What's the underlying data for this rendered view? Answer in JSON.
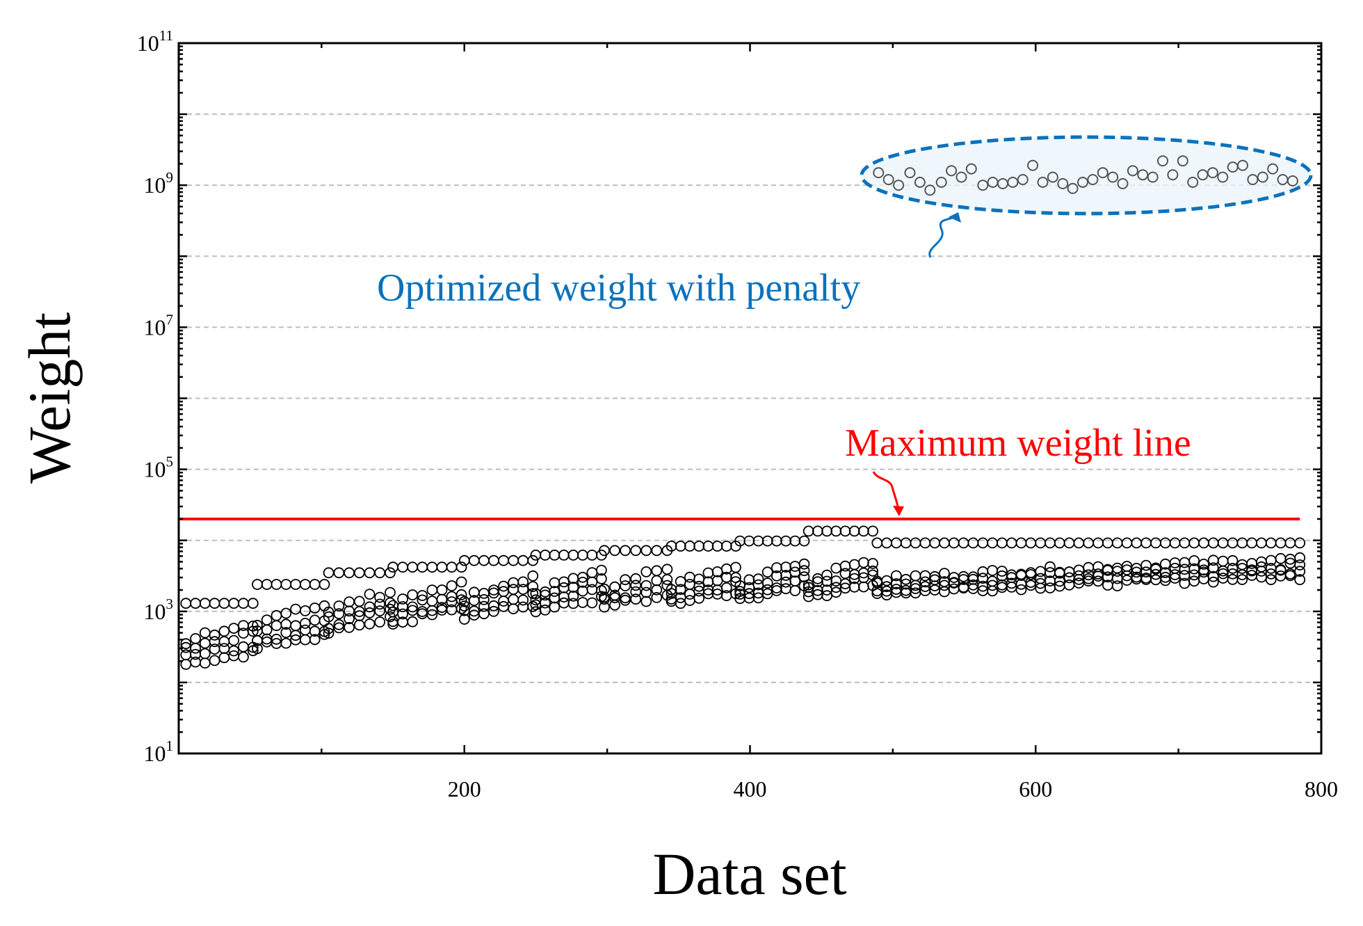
{
  "chart_data": {
    "type": "scatter",
    "title": "",
    "xlabel": "Data set",
    "ylabel": "Weight",
    "xlim": [
      0,
      800
    ],
    "ylim_log10": [
      1,
      11
    ],
    "yscale": "log",
    "grid": "dashed, at every decade 10^2 to 10^10",
    "x_ticks": [
      {
        "value": 200,
        "label": "200"
      },
      {
        "value": 400,
        "label": "400"
      },
      {
        "value": 600,
        "label": "600"
      },
      {
        "value": 800,
        "label": "800"
      }
    ],
    "y_ticks": [
      {
        "exp": 1,
        "base": "10",
        "sup": "1"
      },
      {
        "exp": 3,
        "base": "10",
        "sup": "3"
      },
      {
        "exp": 5,
        "base": "10",
        "sup": "5"
      },
      {
        "exp": 7,
        "base": "10",
        "sup": "7"
      },
      {
        "exp": 9,
        "base": "10",
        "sup": "9"
      },
      {
        "exp": 11,
        "base": "10",
        "sup": "11"
      }
    ],
    "max_weight_line": {
      "label": "Maximum weight line",
      "value": 20000,
      "x_range": [
        0,
        785
      ],
      "color": "#ff0000"
    },
    "series_groups": [
      {
        "x_start": 5,
        "x_end": 52,
        "mins": [
          180,
          240,
          300,
          380
        ],
        "maxs": [
          260,
          330,
          480,
          650,
          1300
        ]
      },
      {
        "x_start": 55,
        "x_end": 102,
        "mins": [
          320,
          400,
          520,
          700
        ],
        "maxs": [
          450,
          550,
          800,
          1200,
          2400
        ]
      },
      {
        "x_start": 105,
        "x_end": 148,
        "mins": [
          500,
          620,
          800,
          1000
        ],
        "maxs": [
          800,
          1000,
          1400,
          1900,
          3500
        ]
      },
      {
        "x_start": 150,
        "x_end": 198,
        "mins": [
          650,
          780,
          950,
          1200
        ],
        "maxs": [
          1100,
          1400,
          1900,
          2600,
          4200
        ]
      },
      {
        "x_start": 200,
        "x_end": 248,
        "mins": [
          850,
          1000,
          1200,
          1500
        ],
        "maxs": [
          1300,
          1700,
          2300,
          3100,
          5200
        ]
      },
      {
        "x_start": 250,
        "x_end": 296,
        "mins": [
          1000,
          1200,
          1450,
          1800
        ],
        "maxs": [
          1500,
          2000,
          2700,
          3600,
          6200
        ]
      },
      {
        "x_start": 298,
        "x_end": 342,
        "mins": [
          1150,
          1350,
          1650,
          2000
        ],
        "maxs": [
          1700,
          2300,
          3000,
          4000,
          7200
        ]
      },
      {
        "x_start": 345,
        "x_end": 390,
        "mins": [
          1300,
          1500,
          1800,
          2200
        ],
        "maxs": [
          1900,
          2500,
          3300,
          4400,
          8300
        ]
      },
      {
        "x_start": 393,
        "x_end": 438,
        "mins": [
          1450,
          1650,
          2000,
          2400
        ],
        "maxs": [
          2100,
          2800,
          3600,
          4800,
          9800
        ]
      },
      {
        "x_start": 441,
        "x_end": 486,
        "mins": [
          1600,
          1850,
          2200,
          2600
        ],
        "maxs": [
          2300,
          3000,
          3900,
          5200,
          13500
        ]
      },
      {
        "x_start": 489,
        "x_end": 785,
        "mins": [
          1800,
          2050,
          2400,
          2800
        ],
        "maxs": [
          3100,
          3700,
          4400,
          5400,
          9200
        ]
      }
    ],
    "penalty_group": {
      "label": "Optimized weight with penalty",
      "color": "#0a72bc",
      "x": [
        490,
        497,
        504,
        512,
        519,
        526,
        534,
        541,
        548,
        555,
        563,
        570,
        577,
        584,
        591,
        598,
        605,
        612,
        619,
        626,
        633,
        640,
        647,
        654,
        661,
        668,
        675,
        682,
        689,
        696,
        703,
        710,
        717,
        724,
        731,
        738,
        745,
        752,
        759,
        766,
        773,
        780
      ],
      "values": [
        1500000000.0,
        1200000000.0,
        1000000000.0,
        1500000000.0,
        1100000000.0,
        850000000.0,
        1100000000.0,
        1600000000.0,
        1300000000.0,
        1700000000.0,
        1000000000.0,
        1100000000.0,
        1050000000.0,
        1100000000.0,
        1200000000.0,
        1900000000.0,
        1100000000.0,
        1300000000.0,
        1050000000.0,
        900000000.0,
        1100000000.0,
        1200000000.0,
        1500000000.0,
        1300000000.0,
        1050000000.0,
        1600000000.0,
        1400000000.0,
        1300000000.0,
        2200000000.0,
        1400000000.0,
        2200000000.0,
        1100000000.0,
        1400000000.0,
        1500000000.0,
        1300000000.0,
        1800000000.0,
        1900000000.0,
        1200000000.0,
        1300000000.0,
        1700000000.0,
        1200000000.0,
        1150000000.0
      ]
    }
  }
}
